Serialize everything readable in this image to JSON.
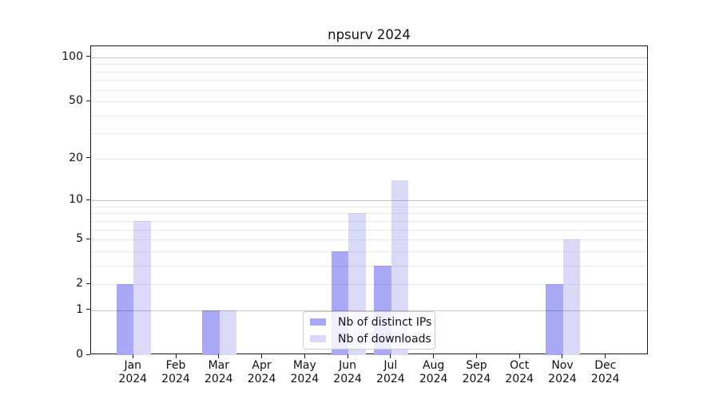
{
  "chart_data": {
    "type": "bar",
    "title": "npsurv 2024",
    "categories": [
      "Jan",
      "Feb",
      "Mar",
      "Apr",
      "May",
      "Jun",
      "Jul",
      "Aug",
      "Sep",
      "Oct",
      "Nov",
      "Dec"
    ],
    "category_year": "2024",
    "series": [
      {
        "name": "Nb of distinct IPs",
        "color": "#a8a8f6",
        "values": [
          2,
          0,
          1,
          0,
          0,
          4,
          3,
          0,
          0,
          0,
          2,
          0
        ]
      },
      {
        "name": "Nb of downloads",
        "color": "#dadaf8",
        "values": [
          7,
          0,
          1,
          0,
          0,
          8,
          14,
          0,
          0,
          0,
          5,
          0
        ]
      }
    ],
    "yscale": "log1p",
    "ylim": [
      0,
      119
    ],
    "y_ticks": [
      0,
      1,
      2,
      5,
      10,
      20,
      50,
      100
    ],
    "y_gridlines_major": [
      1,
      10,
      100
    ],
    "y_gridlines_minor": [
      2,
      3,
      4,
      5,
      6,
      7,
      8,
      9,
      20,
      30,
      40,
      50,
      60,
      70,
      80,
      90
    ],
    "grid": true,
    "legend_position": "lower center",
    "colors": {
      "grid_major": "rgba(0,0,0,0.22)",
      "grid_minor": "rgba(0,0,0,0.07)",
      "axis": "#1a1a1a",
      "legend_border": "#cccccc"
    }
  }
}
